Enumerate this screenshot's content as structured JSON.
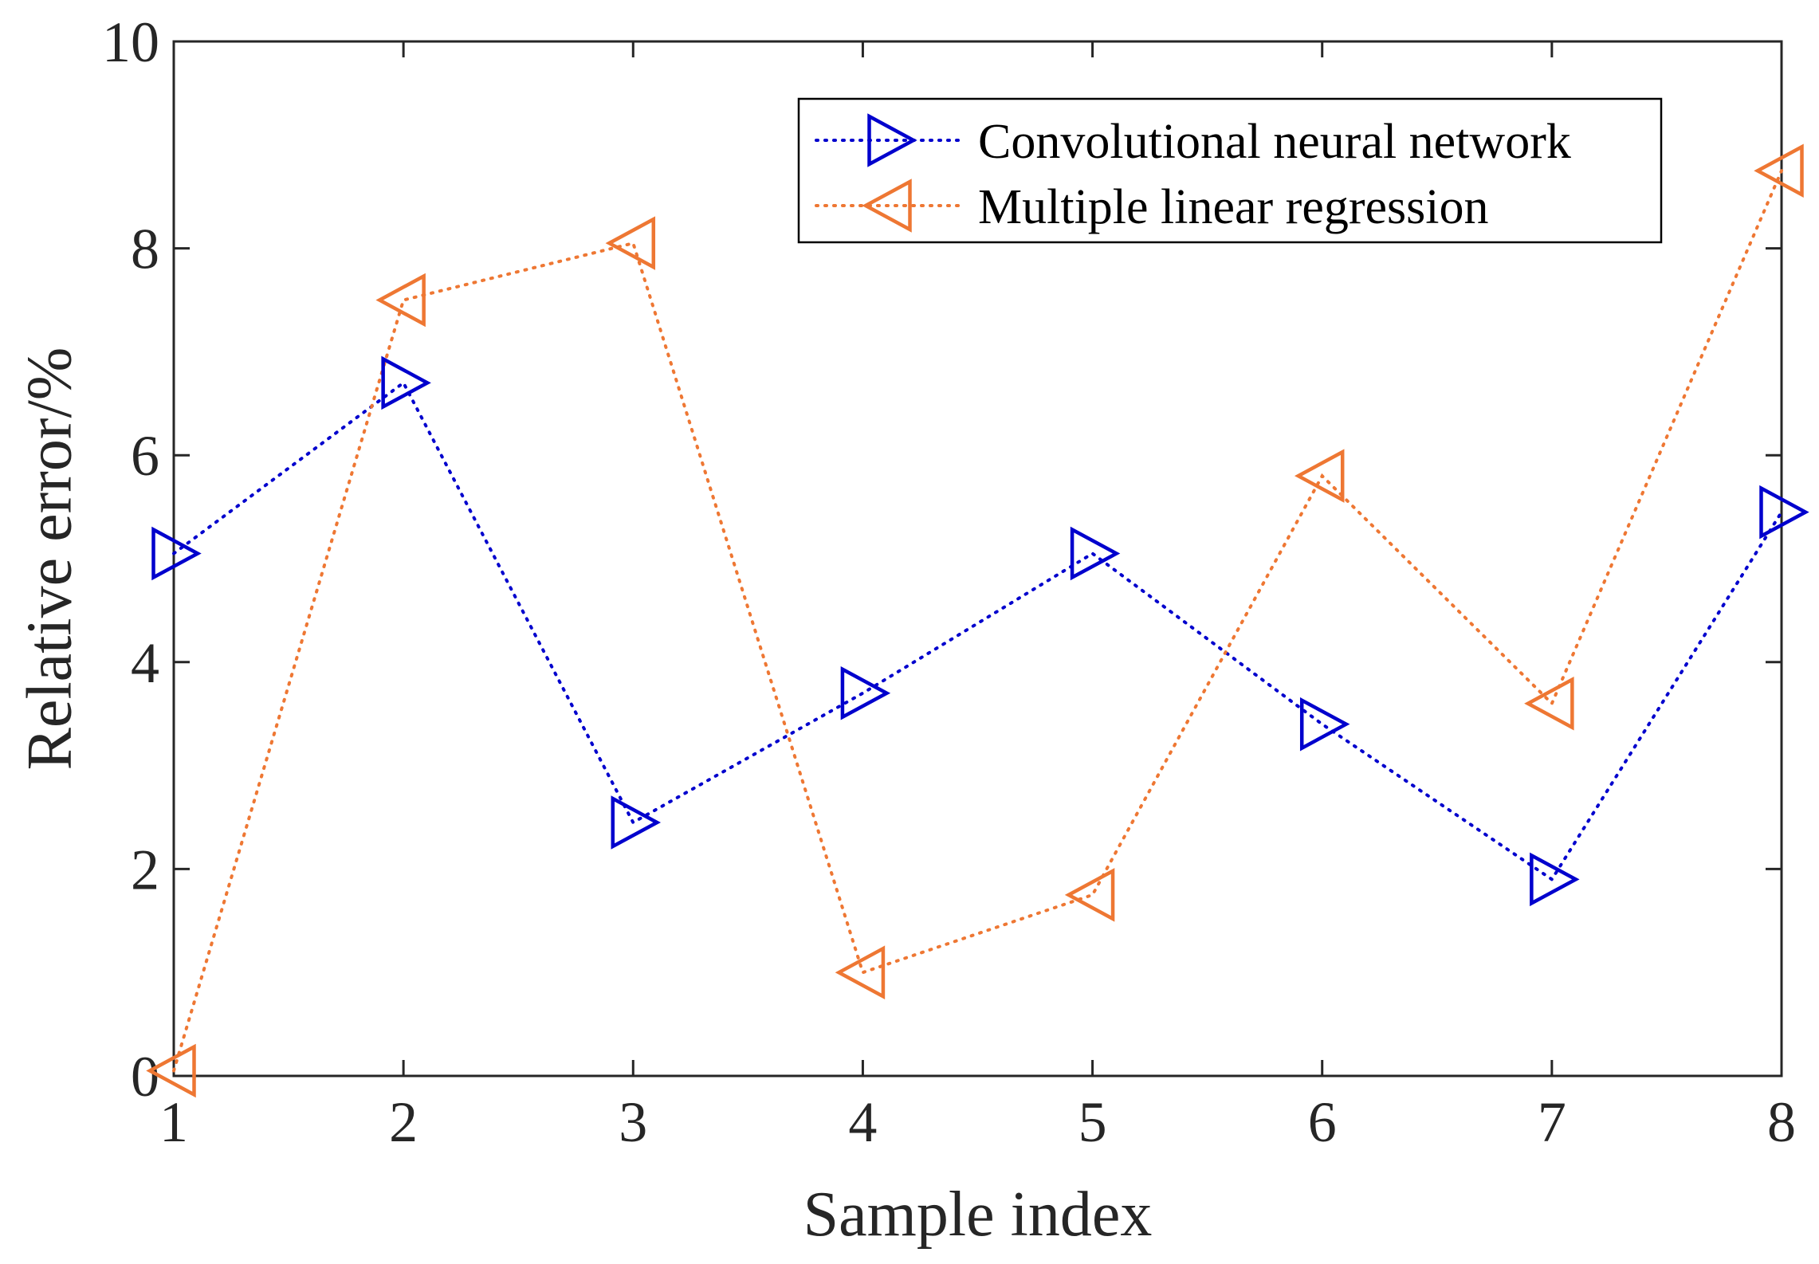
{
  "chart_data": {
    "type": "line",
    "title": "",
    "xlabel": "Sample index",
    "ylabel": "Relative error/%",
    "x": [
      1,
      2,
      3,
      4,
      5,
      6,
      7,
      8
    ],
    "xlim": [
      1,
      8
    ],
    "ylim": [
      0,
      10
    ],
    "xticks": [
      "1",
      "2",
      "3",
      "4",
      "5",
      "6",
      "7",
      "8"
    ],
    "yticks": [
      "0",
      "2",
      "4",
      "6",
      "8",
      "10"
    ],
    "grid": false,
    "legend_position": "top-right",
    "series": [
      {
        "name": "Convolutional neural network",
        "values": [
          5.05,
          6.7,
          2.45,
          3.7,
          5.05,
          3.4,
          1.9,
          5.45
        ],
        "color": "#0000CD",
        "marker": "triangle-right",
        "line_style": "dotted"
      },
      {
        "name": "Multiple linear regression",
        "values": [
          0.05,
          7.5,
          8.05,
          1.0,
          1.75,
          5.8,
          3.6,
          8.75
        ],
        "color": "#EE7733",
        "marker": "triangle-left",
        "line_style": "dotted"
      }
    ]
  }
}
